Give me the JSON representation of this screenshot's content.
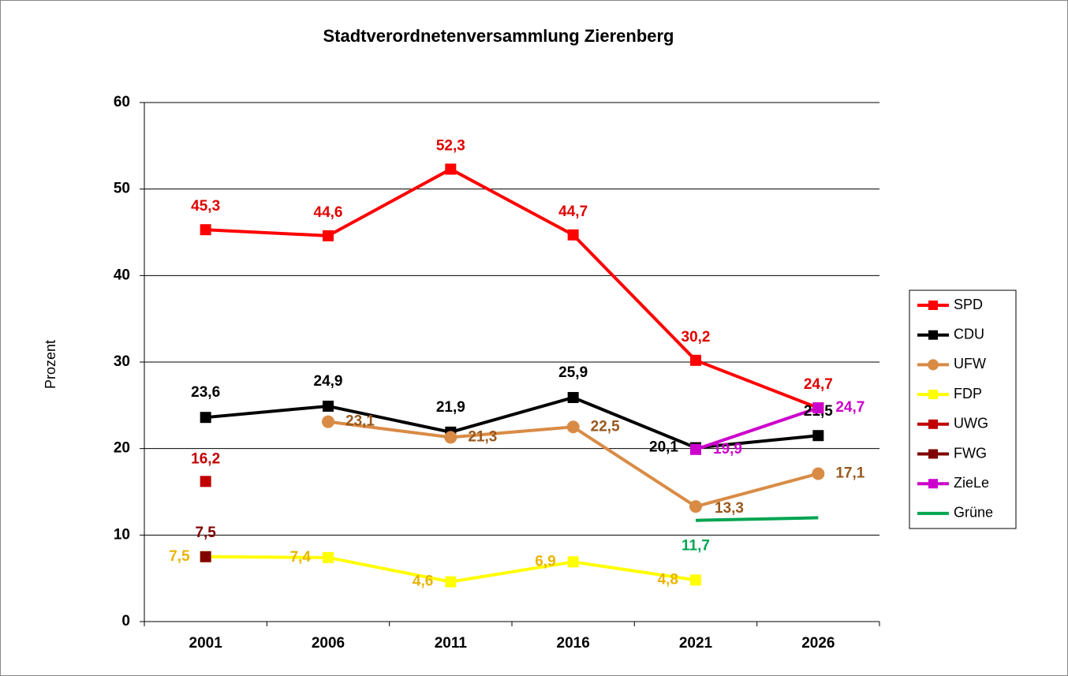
{
  "chart_data": {
    "type": "line",
    "title": "Stadtverordnetenversammlung Zierenberg",
    "y_label": "Prozent",
    "categories": [
      "2001",
      "2006",
      "2011",
      "2016",
      "2021",
      "2026"
    ],
    "ylim": [
      0,
      60
    ],
    "yticks": [
      0,
      10,
      20,
      30,
      40,
      50,
      60
    ],
    "grid": true,
    "legend": "right",
    "series": [
      {
        "name": "SPD",
        "color": "#ff0000",
        "label_color": "#e00000",
        "marker": "square",
        "values": [
          45.3,
          44.6,
          52.3,
          44.7,
          30.2,
          24.7
        ],
        "value_labels": [
          "45,3",
          "44,6",
          "52,3",
          "44,7",
          "30,2",
          "24,7"
        ]
      },
      {
        "name": "CDU",
        "color": "#000000",
        "label_color": "#000000",
        "marker": "square",
        "values": [
          23.6,
          24.9,
          21.9,
          25.9,
          20.1,
          21.5
        ],
        "value_labels": [
          "23,6",
          "24,9",
          "21,9",
          "25,9",
          "20,1",
          "21,5"
        ]
      },
      {
        "name": "UFW",
        "color": "#d98b45",
        "label_color": "#99571c",
        "marker": "circle",
        "values": [
          null,
          23.1,
          21.3,
          22.5,
          13.3,
          17.1
        ],
        "value_labels": [
          null,
          "23,1",
          "21,3",
          "22,5",
          "13,3",
          "17,1"
        ]
      },
      {
        "name": "FDP",
        "color": "#ffff00",
        "label_color": "#e8b400",
        "marker": "square",
        "values": [
          7.5,
          7.4,
          4.6,
          6.9,
          4.8,
          null
        ],
        "value_labels": [
          "7,5",
          "7,4",
          "4,6",
          "6,9",
          "4,8",
          null
        ]
      },
      {
        "name": "UWG",
        "color": "#c00000",
        "label_color": "#c00000",
        "marker": "square",
        "values": [
          16.2,
          null,
          null,
          null,
          null,
          null
        ],
        "value_labels": [
          "16,2",
          null,
          null,
          null,
          null,
          null
        ]
      },
      {
        "name": "FWG",
        "color": "#800000",
        "label_color": "#800000",
        "marker": "square",
        "values": [
          7.5,
          null,
          null,
          null,
          null,
          null
        ],
        "value_labels": [
          "7,5",
          null,
          null,
          null,
          null,
          null
        ]
      },
      {
        "name": "ZieLe",
        "color": "#cc00cc",
        "label_color": "#cc00cc",
        "marker": "square",
        "values": [
          null,
          null,
          null,
          null,
          19.9,
          24.7
        ],
        "value_labels": [
          null,
          null,
          null,
          null,
          "19,9",
          "24,7"
        ]
      },
      {
        "name": "Grüne",
        "color": "#00a550",
        "label_color": "#00a550",
        "marker": "none",
        "values": [
          null,
          null,
          null,
          null,
          11.7,
          12.0
        ],
        "value_labels": [
          null,
          null,
          null,
          null,
          "11,7",
          null
        ]
      }
    ]
  }
}
